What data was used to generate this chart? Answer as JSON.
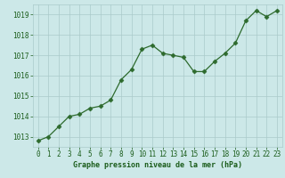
{
  "x": [
    0,
    1,
    2,
    3,
    4,
    5,
    6,
    7,
    8,
    9,
    10,
    11,
    12,
    13,
    14,
    15,
    16,
    17,
    18,
    19,
    20,
    21,
    22,
    23
  ],
  "y": [
    1012.8,
    1013.0,
    1013.5,
    1014.0,
    1014.1,
    1014.4,
    1014.5,
    1014.8,
    1015.8,
    1016.3,
    1017.3,
    1017.5,
    1017.1,
    1017.0,
    1016.9,
    1016.2,
    1016.2,
    1016.7,
    1017.1,
    1017.6,
    1018.7,
    1019.2,
    1018.9,
    1019.2
  ],
  "line_color": "#2d6a2d",
  "marker": "D",
  "marker_size": 2.5,
  "bg_color": "#cce8e8",
  "grid_color": "#aacaca",
  "axis_label_color": "#1a5c1a",
  "tick_color": "#1a5c1a",
  "xlabel": "Graphe pression niveau de la mer (hPa)",
  "ylim": [
    1012.5,
    1019.5
  ],
  "yticks": [
    1013,
    1014,
    1015,
    1016,
    1017,
    1018,
    1019
  ],
  "xticks": [
    0,
    1,
    2,
    3,
    4,
    5,
    6,
    7,
    8,
    9,
    10,
    11,
    12,
    13,
    14,
    15,
    16,
    17,
    18,
    19,
    20,
    21,
    22,
    23
  ]
}
